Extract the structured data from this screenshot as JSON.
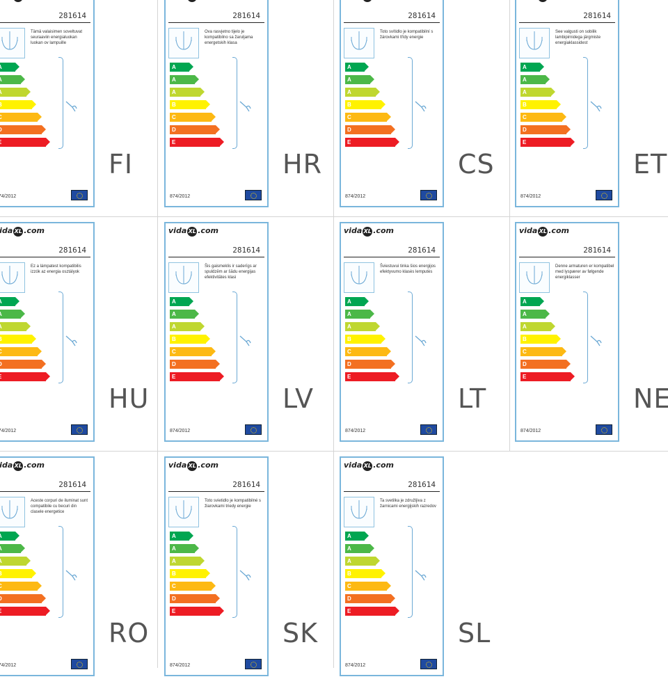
{
  "brand": {
    "prefix": "vida",
    "mark": "XL",
    "suffix": ".com"
  },
  "regulation": "874/2012",
  "colors": {
    "card_border": "#7ab6dc",
    "class_colors": [
      "#00a651",
      "#4cb848",
      "#bfd730",
      "#fff200",
      "#fdb913",
      "#f37021",
      "#ed1c24"
    ]
  },
  "class_letters": [
    "A",
    "A",
    "A",
    "B",
    "C",
    "D",
    "E"
  ],
  "icons": [
    "chandelier-icon",
    "bulb-icon",
    "eu-flag-icon"
  ],
  "labels": [
    {
      "lang": "FI",
      "code": "281614",
      "desc": "Tämä valaisimen soveltuvat seuraaviin energialuokan luokan ov lampuille"
    },
    {
      "lang": "HR",
      "code": "281614",
      "desc": "Ova rasvjetno tijelo je kompatibilno sa žaruljama energetskih klasa"
    },
    {
      "lang": "CS",
      "code": "281614",
      "desc": "Toto svítidlo je kompatibilní s žárovkami třídy energie"
    },
    {
      "lang": "ET",
      "code": "281614",
      "desc": "See valgusti on sobilik lambipirnidega järgmiste energiaklassidest"
    },
    {
      "lang": "HU",
      "code": "281614",
      "desc": "Ez a lámpatest kompatibilis izzók az energia osztályok"
    },
    {
      "lang": "LV",
      "code": "281614",
      "desc": "Šis gaismeklis ir saderīgs ar spuldzēm ar šādu energijas efektivitātes klasi"
    },
    {
      "lang": "LT",
      "code": "281614",
      "desc": "Šviestuvui tinka šios energijos efektyvumo klasės lemputės"
    },
    {
      "lang": "NE",
      "code": "281614",
      "desc": "Denne armaturen er kompatibel med lyspærer av følgende energiklasser"
    },
    {
      "lang": "RO",
      "code": "281614",
      "desc": "Aceste corpuri de iluminat sunt compatibile cu becuri din clasele energetice"
    },
    {
      "lang": "SK",
      "code": "281614",
      "desc": "Toto svietidlo je kompatibilné s žiarovkami triedy energie"
    },
    {
      "lang": "SL",
      "code": "281614",
      "desc": "Ta svetilka je združljiva z žarnicami energijskih razredov"
    }
  ]
}
